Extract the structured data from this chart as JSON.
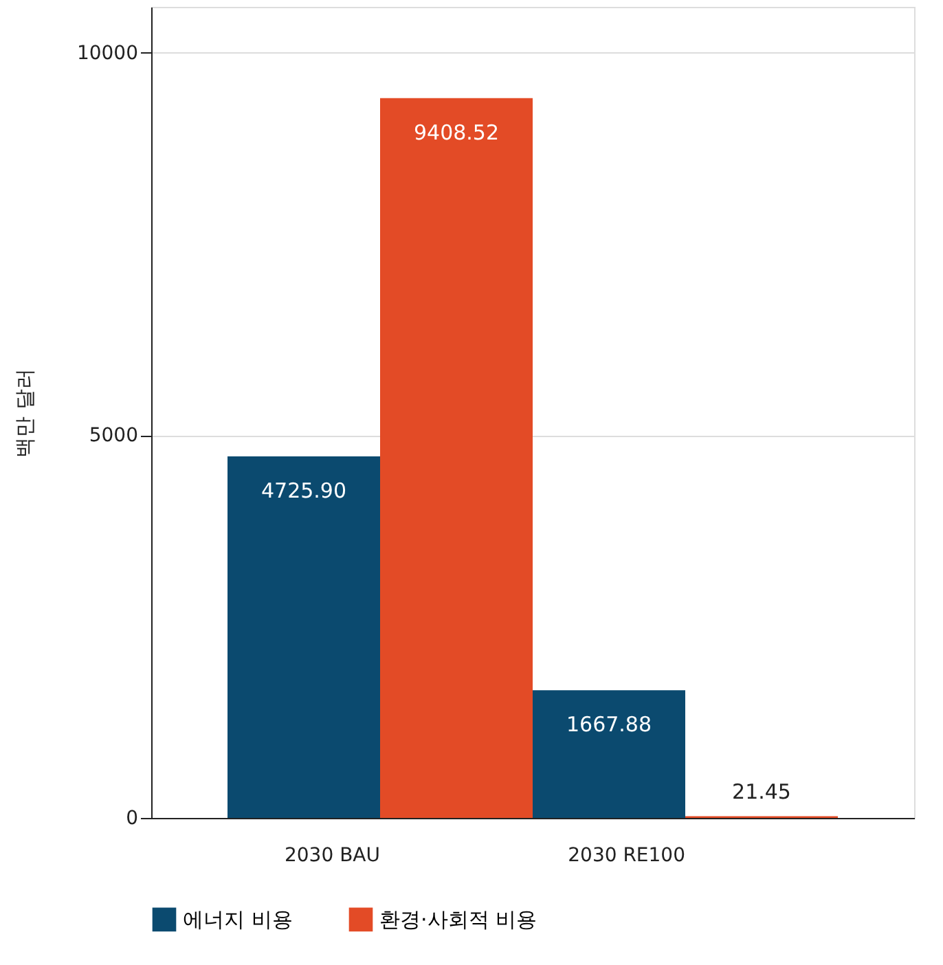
{
  "chart_data": {
    "type": "bar",
    "ylabel": "백만 달러",
    "categories": [
      "2030 BAU",
      "2030 RE100"
    ],
    "series": [
      {
        "name": "에너지 비용",
        "color": "#0b4a6f",
        "values": [
          4725.9,
          1667.88
        ]
      },
      {
        "name": "환경·사회적 비용",
        "color": "#e34b26",
        "values": [
          9408.52,
          21.45
        ]
      }
    ],
    "value_labels": [
      [
        "4725.90",
        "1667.88"
      ],
      [
        "9408.52",
        "21.45"
      ]
    ],
    "ylim": [
      0,
      10600
    ],
    "yticks": [
      0,
      5000,
      10000
    ],
    "grid": "y",
    "legend": "bottom"
  }
}
